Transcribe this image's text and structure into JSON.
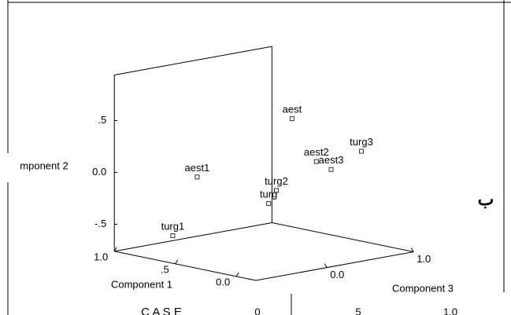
{
  "chart_data": {
    "type": "scatter3d",
    "xlabel": "Component 1",
    "ylabel": "mponent 2",
    "zlabel": "Component 3",
    "labels": [
      "aest1",
      "turg1",
      "aest",
      "aest2",
      "aest3",
      "turg3",
      "turg2",
      "turg"
    ],
    "x": [
      0.74,
      0.94,
      0.14,
      0.04,
      -0.01,
      0.04,
      0.24,
      0.19
    ],
    "y": [
      -0.07,
      -0.685,
      0.6,
      0.19,
      0.11,
      0.21,
      -0.11,
      -0.2
    ],
    "z": [
      -0.23,
      -0.23,
      0.02,
      0.16,
      0.26,
      0.68,
      -0.02,
      -0.18
    ],
    "color": "#333333",
    "xlim": [
      -0.16,
      1
    ],
    "ylim": [
      -0.76,
      0.94
    ],
    "zlim": [
      -0.82,
      1
    ],
    "xticks": [
      {
        "value": 0,
        "label": "0.0"
      },
      {
        "value": 0.5,
        "label": ".5"
      },
      {
        "value": 1,
        "label": "1.0"
      }
    ],
    "yticks": [
      {
        "value": -0.5,
        "label": "-.5"
      },
      {
        "value": 0,
        "label": "0.0"
      },
      {
        "value": 0.5,
        "label": ".5"
      }
    ],
    "zticks": [
      {
        "value": 0,
        "label": "0.0"
      },
      {
        "value": 1,
        "label": "1.0"
      }
    ],
    "annotations": [
      "ب",
      "C A S E",
      "0",
      "5",
      "1.0"
    ]
  }
}
